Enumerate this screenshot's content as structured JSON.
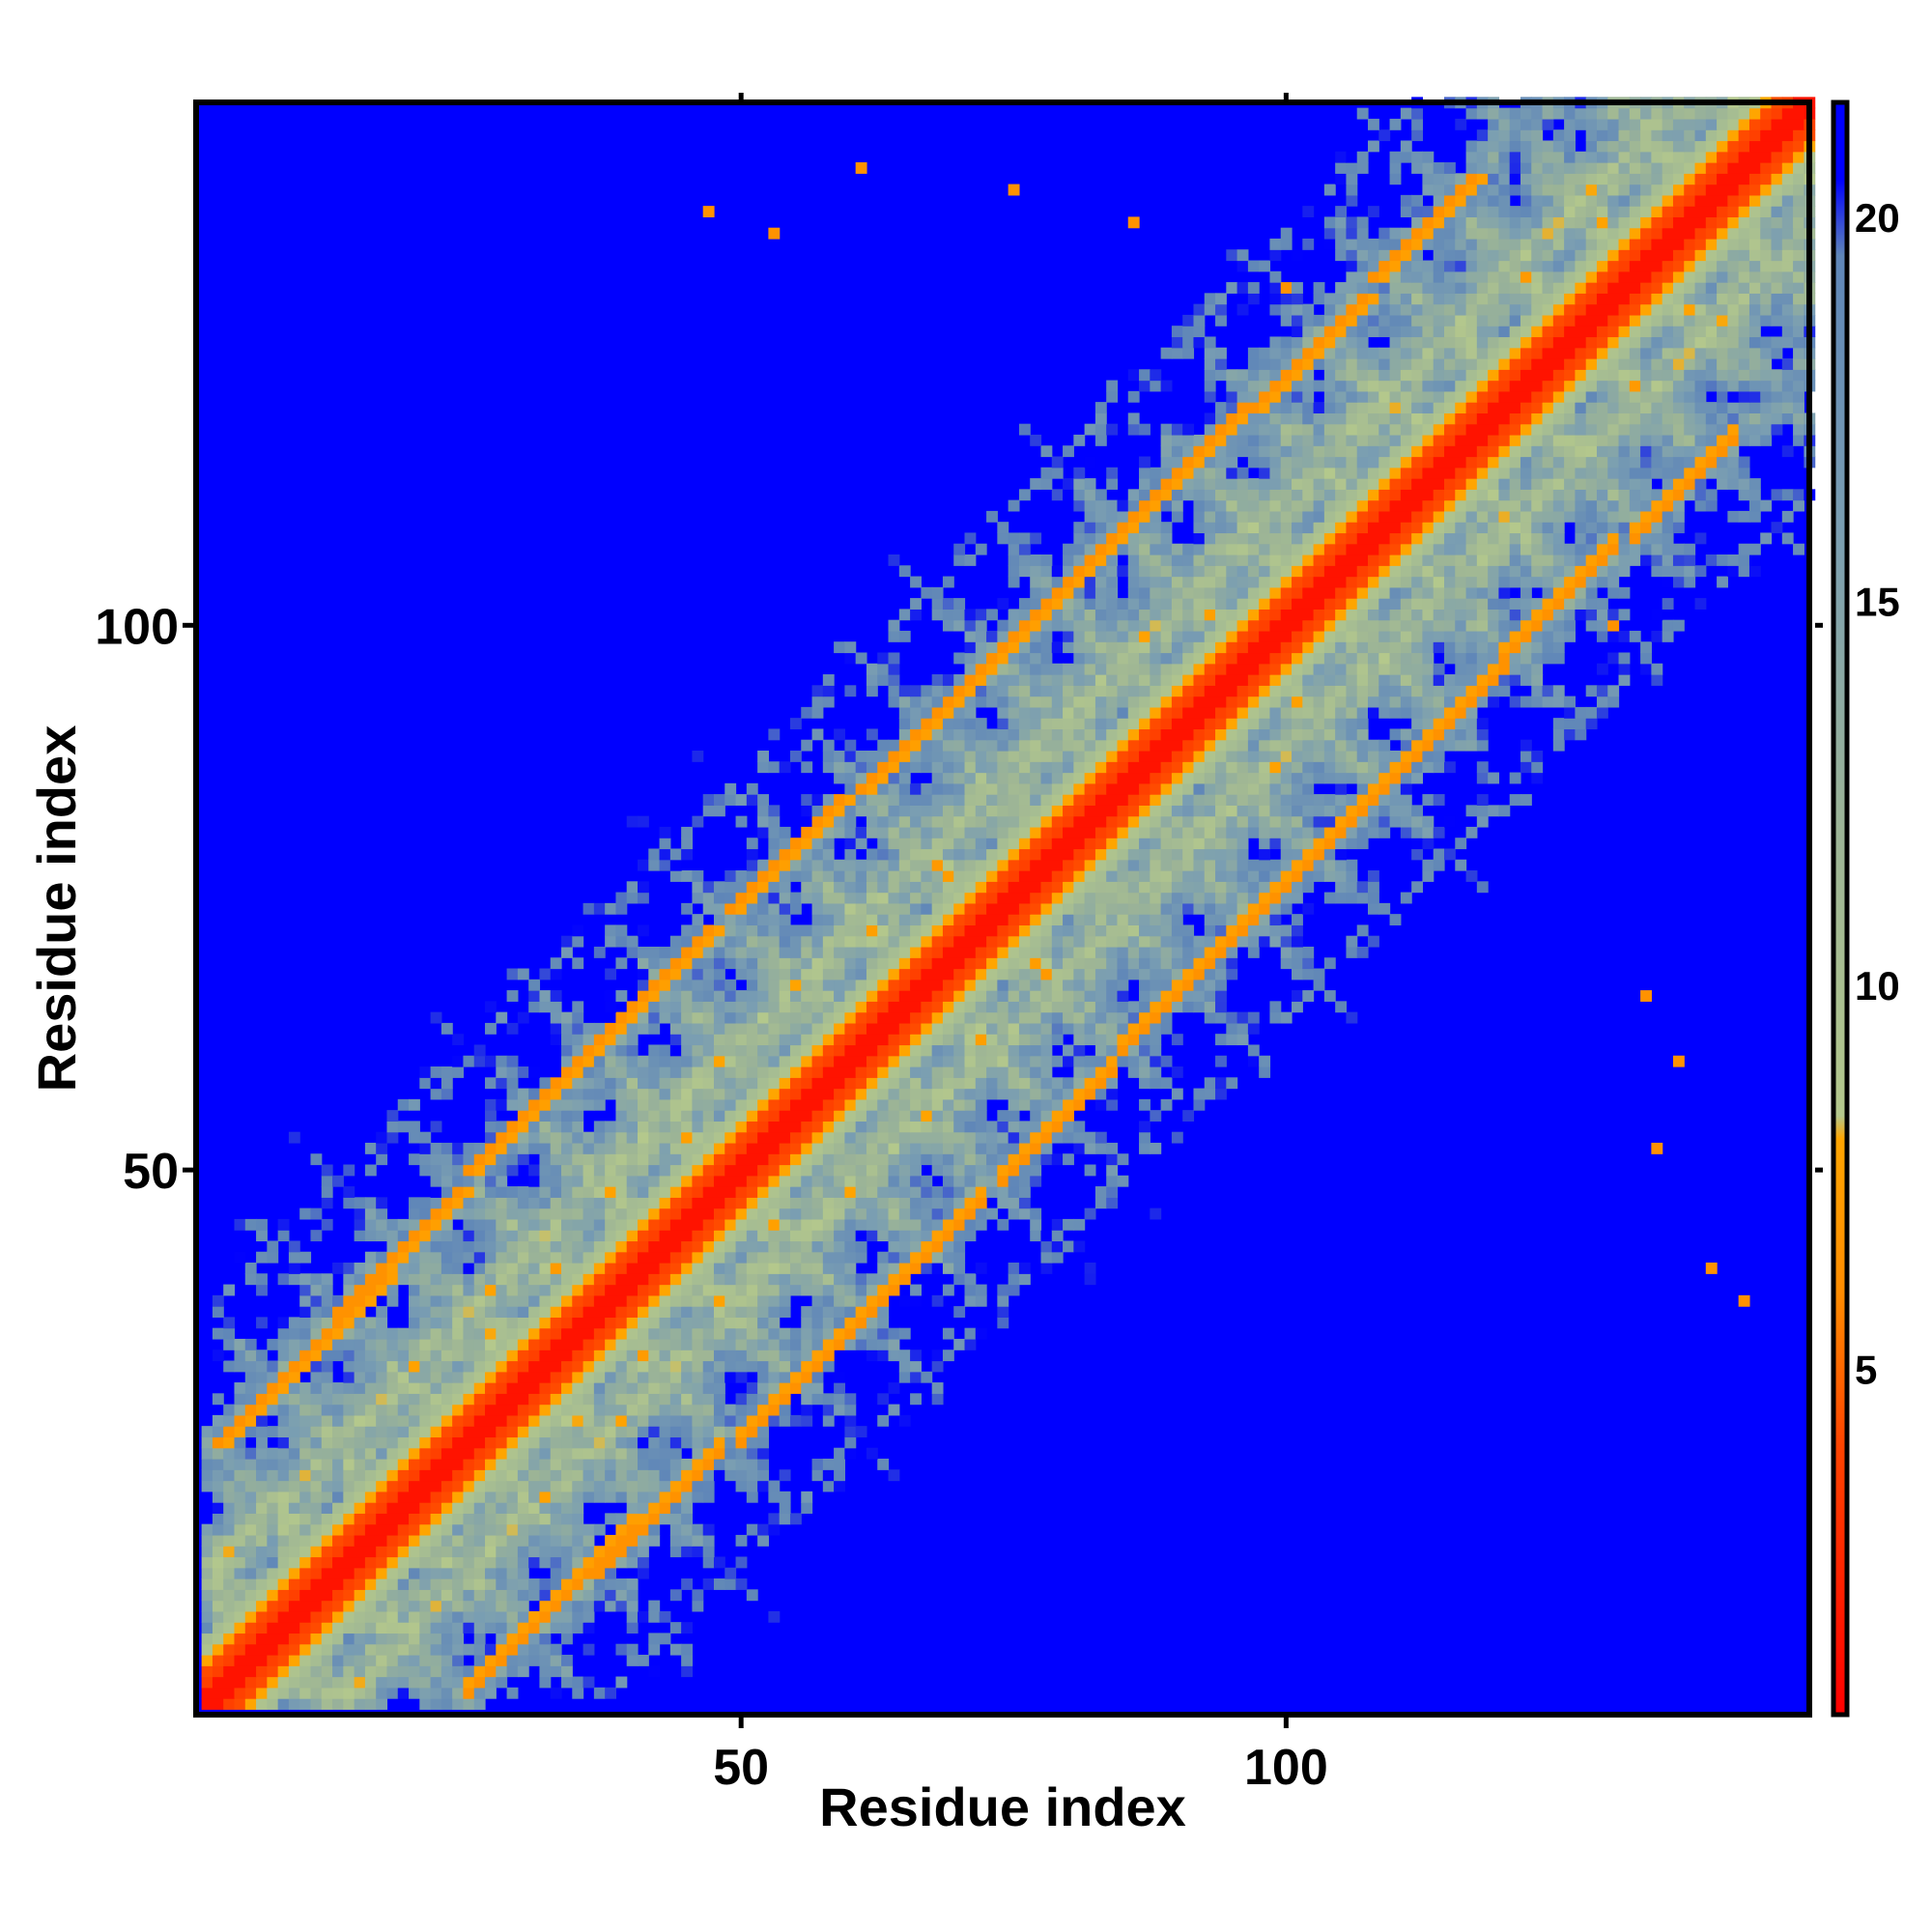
{
  "chart_data": {
    "type": "heatmap",
    "title": "",
    "xlabel": "Residue index",
    "ylabel": "Residue index",
    "n_residues": 148,
    "xlim": [
      1,
      148
    ],
    "ylim": [
      1,
      148
    ],
    "x_ticks": [
      50,
      100
    ],
    "y_ticks": [
      50,
      100
    ],
    "x_tick_labels": [
      "50",
      "100"
    ],
    "y_tick_labels": [
      "50",
      "100"
    ],
    "value_range": [
      0.5,
      21.5
    ],
    "color_cutoff": 21.5,
    "colorbar": {
      "placement": "right",
      "ticks": [
        5,
        10,
        15,
        20
      ],
      "tick_labels": [
        "5",
        "10",
        "15",
        "20"
      ],
      "stops": [
        {
          "value": 0.5,
          "color": "#ff0000"
        },
        {
          "value": 4.0,
          "color": "#ff4400"
        },
        {
          "value": 6.0,
          "color": "#ff8c00"
        },
        {
          "value": 8.0,
          "color": "#ffa500"
        },
        {
          "value": 8.3,
          "color": "#b4c88c"
        },
        {
          "value": 12.0,
          "color": "#9cb496"
        },
        {
          "value": 16.0,
          "color": "#7a9eb2"
        },
        {
          "value": 19.5,
          "color": "#5f86b8"
        },
        {
          "value": 20.5,
          "color": "#0000ff"
        },
        {
          "value": 21.5,
          "color": "#0000ff"
        }
      ]
    },
    "background_color": "#0000ff",
    "structure": {
      "strand_contact_lines": [
        {
          "x": 2,
          "y1": 25,
          "y2": 40,
          "kind": "anti"
        },
        {
          "x": 13,
          "y1": 37,
          "y2": 48,
          "kind": "anti"
        },
        {
          "x": 25,
          "y1": 50,
          "y2": 62,
          "kind": "anti"
        },
        {
          "x": 37,
          "y1": 62,
          "y2": 72,
          "kind": "anti"
        },
        {
          "x": 49,
          "y1": 74,
          "y2": 84,
          "kind": "anti"
        },
        {
          "x": 61,
          "y1": 85,
          "y2": 96,
          "kind": "anti"
        },
        {
          "x": 73,
          "y1": 97,
          "y2": 108,
          "kind": "anti"
        },
        {
          "x": 85,
          "y1": 109,
          "y2": 120,
          "kind": "anti"
        },
        {
          "x": 97,
          "y1": 120,
          "y2": 130,
          "kind": "anti"
        },
        {
          "x": 108,
          "y1": 132,
          "y2": 141,
          "kind": "anti"
        }
      ],
      "offdiagonal_hotspots": [
        [
          47,
          138
        ],
        [
          53,
          136
        ],
        [
          61,
          142
        ],
        [
          75,
          140
        ],
        [
          86,
          137
        ],
        [
          100,
          131
        ],
        [
          133,
          66
        ],
        [
          136,
          60
        ],
        [
          134,
          52
        ],
        [
          139,
          41
        ],
        [
          142,
          38
        ],
        [
          130,
          100
        ]
      ]
    }
  }
}
